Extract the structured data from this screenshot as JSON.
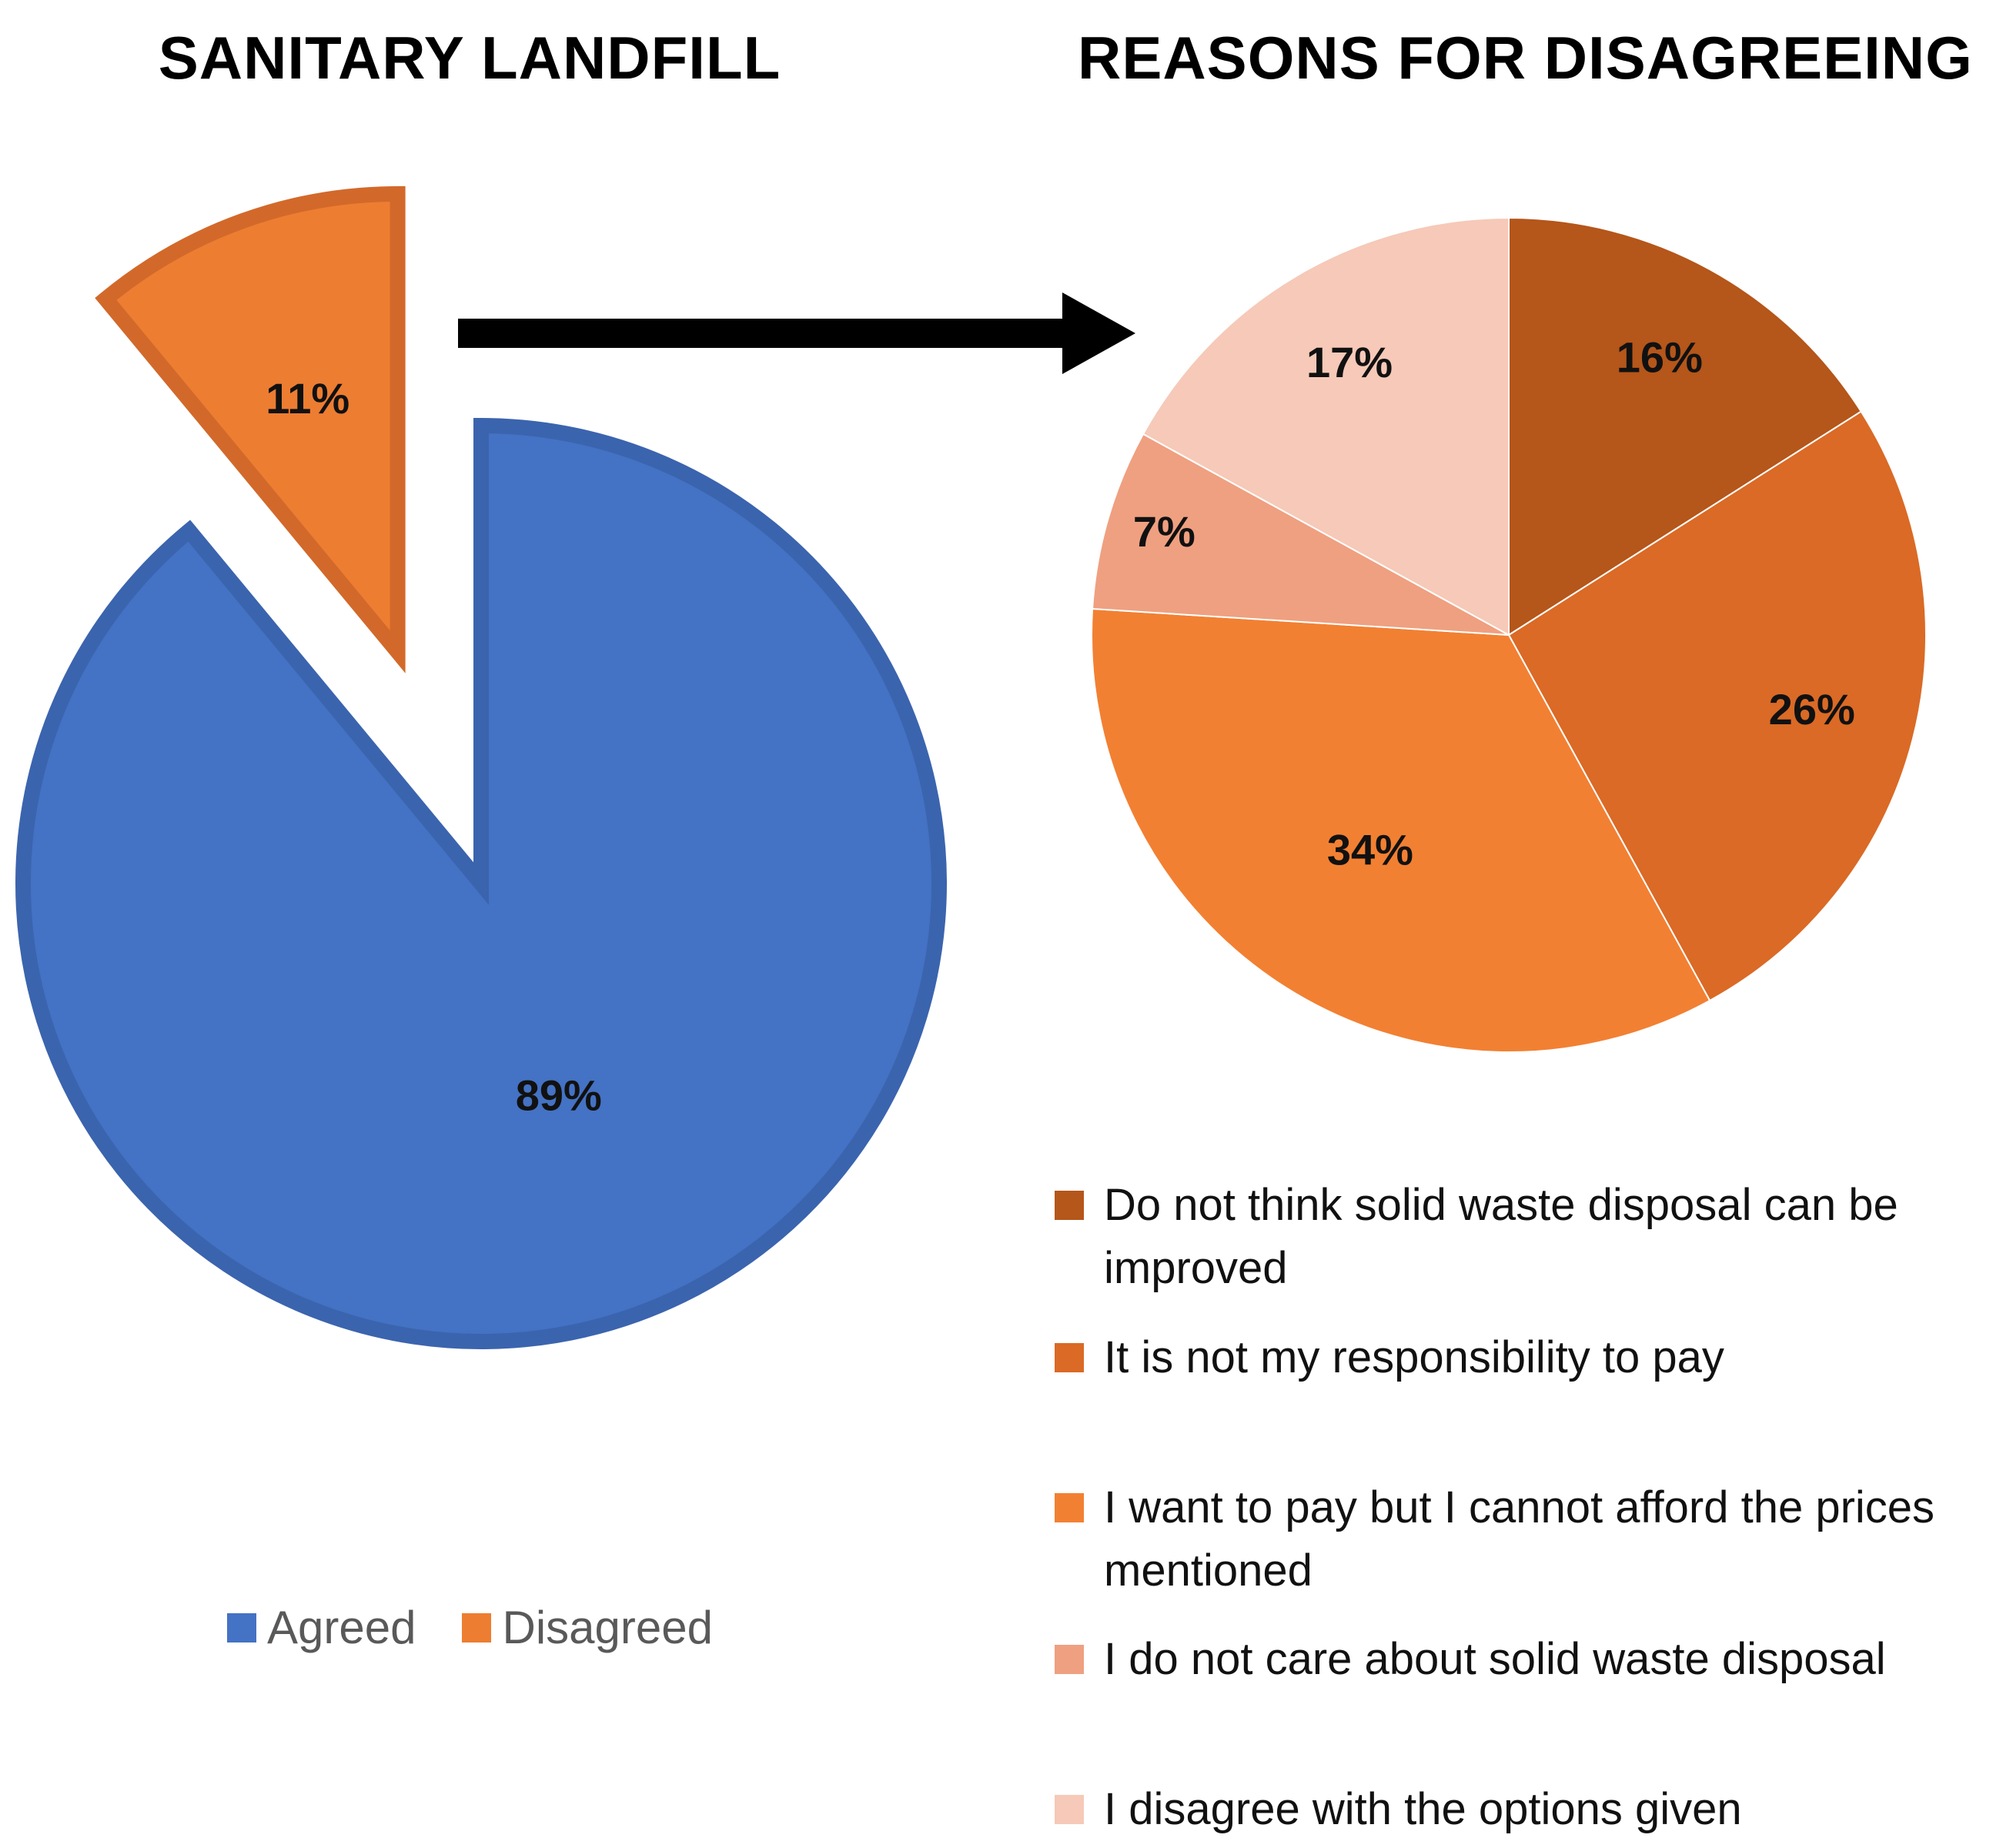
{
  "left_chart": {
    "title": "SANITARY LANDFILL",
    "legend": [
      "Agreed",
      "Disagreed"
    ]
  },
  "right_chart": {
    "title": "REASONS FOR DISAGREEING",
    "legend": [
      "Do not think solid waste disposal can be improved",
      "It is not my responsibility to pay",
      "I want to pay but I cannot afford the prices mentioned",
      "I do not care about solid waste disposal",
      "I disagree with the options given"
    ]
  },
  "chart_data": [
    {
      "type": "pie",
      "title": "SANITARY LANDFILL",
      "categories": [
        "Agreed",
        "Disagreed"
      ],
      "values": [
        89,
        11
      ],
      "labels": [
        "89%",
        "11%"
      ],
      "colors": [
        "#4472c4",
        "#ed7d31"
      ],
      "exploded": "Disagreed",
      "legend_position": "bottom"
    },
    {
      "type": "pie",
      "title": "REASONS FOR DISAGREEING",
      "categories": [
        "Do not think solid waste disposal can be improved",
        "It is not my responsibility to pay",
        "I want to pay but I cannot afford the prices mentioned",
        "I do not care about solid waste disposal",
        "I disagree with the options given"
      ],
      "values": [
        16,
        26,
        34,
        7,
        17
      ],
      "labels": [
        "16%",
        "26%",
        "34%",
        "7%",
        "17%"
      ],
      "colors": [
        "#b5561a",
        "#da6a26",
        "#f28032",
        "#efa080",
        "#f6c9b8"
      ],
      "legend_position": "bottom-right"
    }
  ],
  "connector": {
    "icon": "right-arrow-icon"
  }
}
